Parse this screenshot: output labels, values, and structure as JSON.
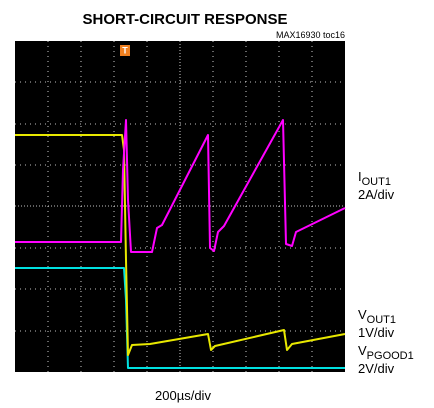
{
  "title": "SHORT-CIRCUIT RESPONSE",
  "figure_id": "MAX16930 toc16",
  "trigger_marker": "T",
  "channels": [
    {
      "symbol": "I",
      "subscript": "OUT1",
      "scale": "2A/div"
    },
    {
      "symbol": "V",
      "subscript": "OUT1",
      "scale": "1V/div"
    },
    {
      "symbol": "V",
      "subscript": "PGOOD1",
      "scale": "2V/div"
    }
  ],
  "time_scale": "200µs/div"
}
